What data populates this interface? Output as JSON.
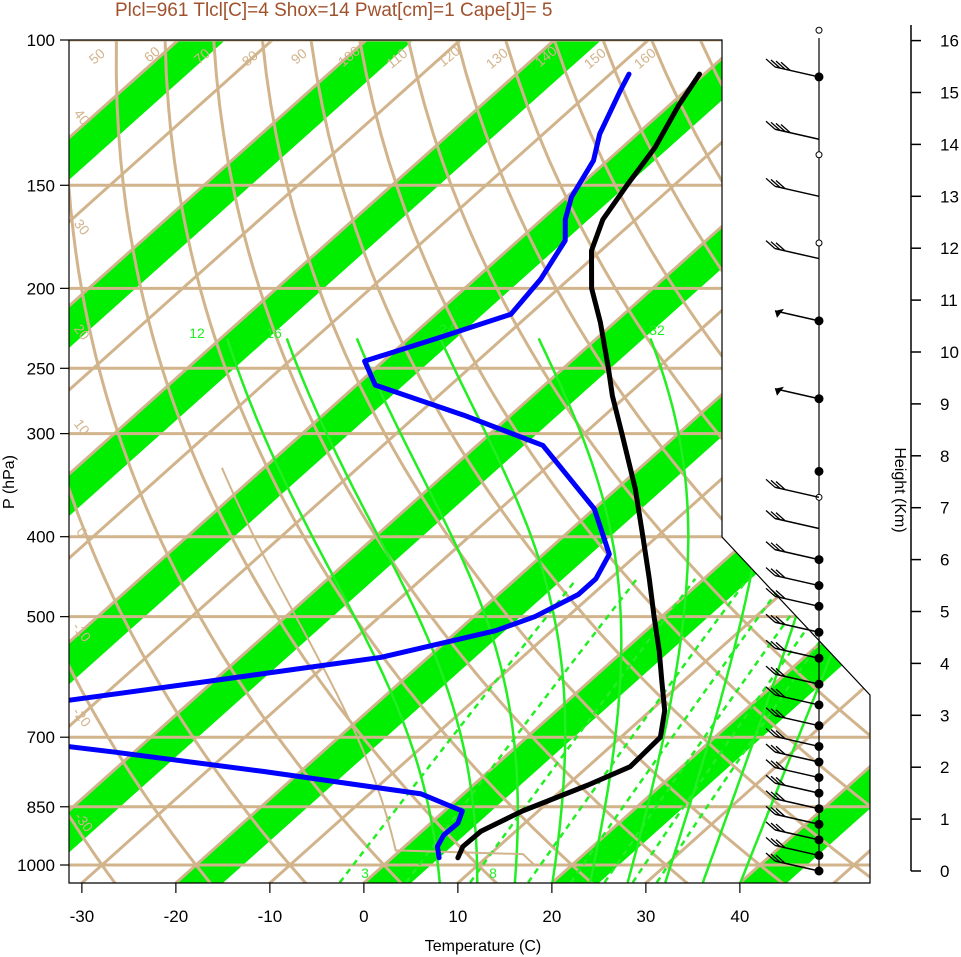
{
  "chart_data": {
    "type": "skew-t",
    "title": "Plcl=961 Tlcl[C]=4 Shox=14 Pwat[cm]=1 Cape[J]= 5",
    "xlabel": "Temperature (C)",
    "ylabel": "P (hPa)",
    "right_label": "Height (Km)",
    "xlim": [
      -34,
      42
    ],
    "ylim_hpa": [
      1050,
      100
    ],
    "pressure_ticks": [
      "100",
      "150",
      "200",
      "250",
      "300",
      "400",
      "500",
      "700",
      "850",
      "1000"
    ],
    "pressure_tick_values": [
      100,
      150,
      200,
      250,
      300,
      400,
      500,
      700,
      850,
      1000
    ],
    "temperature_ticks": [
      "-30",
      "-20",
      "-10",
      "0",
      "10",
      "20",
      "30",
      "40"
    ],
    "temperature_tick_values": [
      -30,
      -20,
      -10,
      0,
      10,
      20,
      30,
      40
    ],
    "height_ticks": [
      "0",
      "1",
      "2",
      "3",
      "4",
      "5",
      "6",
      "7",
      "8",
      "9",
      "10",
      "11",
      "12",
      "13",
      "14",
      "15",
      "16"
    ],
    "dry_adiabat_labels": [
      "-30",
      "-20",
      "-10",
      "0",
      "10",
      "20",
      "30",
      "40",
      "50",
      "60",
      "70",
      "80",
      "90",
      "100",
      "110",
      "120",
      "130",
      "140",
      "150",
      "160"
    ],
    "isotherm_labels": [
      "-30",
      "-20",
      "-10",
      "0",
      "10",
      "20",
      "30",
      "40"
    ],
    "mixing_ratio_labels": [
      "12",
      "16",
      "24",
      "32",
      "3",
      "8"
    ],
    "series": [
      {
        "name": "temperature",
        "color": "#000000",
        "points": [
          {
            "p": 980,
            "t": 7
          },
          {
            "p": 950,
            "t": 6.2
          },
          {
            "p": 910,
            "t": 6.3
          },
          {
            "p": 860,
            "t": 8.3
          },
          {
            "p": 800,
            "t": 12.2
          },
          {
            "p": 760,
            "t": 14.5
          },
          {
            "p": 700,
            "t": 14.2
          },
          {
            "p": 650,
            "t": 11.5
          },
          {
            "p": 600,
            "t": 7.8
          },
          {
            "p": 550,
            "t": 3.8
          },
          {
            "p": 500,
            "t": -0.8
          },
          {
            "p": 450,
            "t": -5.8
          },
          {
            "p": 400,
            "t": -11.5
          },
          {
            "p": 350,
            "t": -18
          },
          {
            "p": 300,
            "t": -26
          },
          {
            "p": 270,
            "t": -31.5
          },
          {
            "p": 250,
            "t": -35.2
          },
          {
            "p": 220,
            "t": -41.5
          },
          {
            "p": 200,
            "t": -46.5
          },
          {
            "p": 180,
            "t": -51
          },
          {
            "p": 165,
            "t": -53.5
          },
          {
            "p": 150,
            "t": -55
          },
          {
            "p": 135,
            "t": -56.5
          },
          {
            "p": 120,
            "t": -59
          },
          {
            "p": 110,
            "t": -60.5
          }
        ]
      },
      {
        "name": "dewpoint",
        "color": "#0000ff",
        "points": [
          {
            "p": 980,
            "t": 5
          },
          {
            "p": 950,
            "t": 3.5
          },
          {
            "p": 920,
            "t": 2.8
          },
          {
            "p": 890,
            "t": 2.9
          },
          {
            "p": 860,
            "t": 1.9
          },
          {
            "p": 820,
            "t": -4.5
          },
          {
            "p": 770,
            "t": -24
          },
          {
            "p": 730,
            "t": -42
          },
          {
            "p": 700,
            "t": -57
          },
          {
            "p": 650,
            "t": -60
          },
          {
            "p": 600,
            "t": -41
          },
          {
            "p": 560,
            "t": -25
          },
          {
            "p": 520,
            "t": -16
          },
          {
            "p": 500,
            "t": -13.5
          },
          {
            "p": 470,
            "t": -11.5
          },
          {
            "p": 450,
            "t": -11.5
          },
          {
            "p": 420,
            "t": -13
          },
          {
            "p": 370,
            "t": -20
          },
          {
            "p": 310,
            "t": -33
          },
          {
            "p": 285,
            "t": -45
          },
          {
            "p": 262,
            "t": -58
          },
          {
            "p": 245,
            "t": -62
          },
          {
            "p": 230,
            "t": -57
          },
          {
            "p": 215,
            "t": -52
          },
          {
            "p": 195,
            "t": -53
          },
          {
            "p": 175,
            "t": -55
          },
          {
            "p": 165,
            "t": -57.5
          },
          {
            "p": 155,
            "t": -59.5
          },
          {
            "p": 140,
            "t": -61.5
          },
          {
            "p": 130,
            "t": -64
          },
          {
            "p": 115,
            "t": -67
          },
          {
            "p": 110,
            "t": -68
          }
        ]
      }
    ],
    "winds": [
      {
        "h_km": 0.0,
        "barbs": "3 full"
      },
      {
        "h_km": 0.3,
        "barbs": "3 full"
      },
      {
        "h_km": 0.6,
        "barbs": "3 full"
      },
      {
        "h_km": 0.9,
        "barbs": "3 full"
      },
      {
        "h_km": 1.2,
        "barbs": "3 full"
      },
      {
        "h_km": 1.5,
        "barbs": "3 full"
      },
      {
        "h_km": 1.8,
        "barbs": "3 full"
      },
      {
        "h_km": 2.1,
        "barbs": "3 full"
      },
      {
        "h_km": 2.4,
        "barbs": "3 full"
      },
      {
        "h_km": 2.8,
        "barbs": "3 full"
      },
      {
        "h_km": 3.2,
        "barbs": "3 full"
      },
      {
        "h_km": 3.6,
        "barbs": "3 full"
      },
      {
        "h_km": 4.1,
        "barbs": "3 full"
      },
      {
        "h_km": 4.6,
        "barbs": "3 full"
      },
      {
        "h_km": 5.1,
        "barbs": "3 full"
      },
      {
        "h_km": 5.5,
        "barbs": "3 full"
      },
      {
        "h_km": 6.0,
        "barbs": "3 full"
      },
      {
        "h_km": 6.6,
        "barbs": "3 full"
      },
      {
        "h_km": 7.2,
        "barbs": "3 full"
      },
      {
        "h_km": 9.1,
        "barbs": "pennant"
      },
      {
        "h_km": 10.6,
        "barbs": "pennant"
      },
      {
        "h_km": 11.8,
        "barbs": "3 full"
      },
      {
        "h_km": 13.0,
        "barbs": "3 full"
      },
      {
        "h_km": 14.1,
        "barbs": "4 full"
      },
      {
        "h_km": 15.3,
        "barbs": "4 full"
      }
    ],
    "height_points_km": [
      0.0,
      0.3,
      0.6,
      0.9,
      1.2,
      1.5,
      1.8,
      2.1,
      2.4,
      2.8,
      3.2,
      3.6,
      4.1,
      4.6,
      5.1,
      5.5,
      6.0,
      7.2,
      7.7,
      9.1,
      10.6,
      12.1,
      13.8,
      15.3,
      16.2
    ],
    "colors": {
      "band": "#00ee00",
      "grid": "#d2b48c",
      "mixing_ratio": "#22ee22",
      "temperature": "#000000",
      "dewpoint": "#0000ff",
      "title": "#a0522d"
    },
    "grid": true
  }
}
